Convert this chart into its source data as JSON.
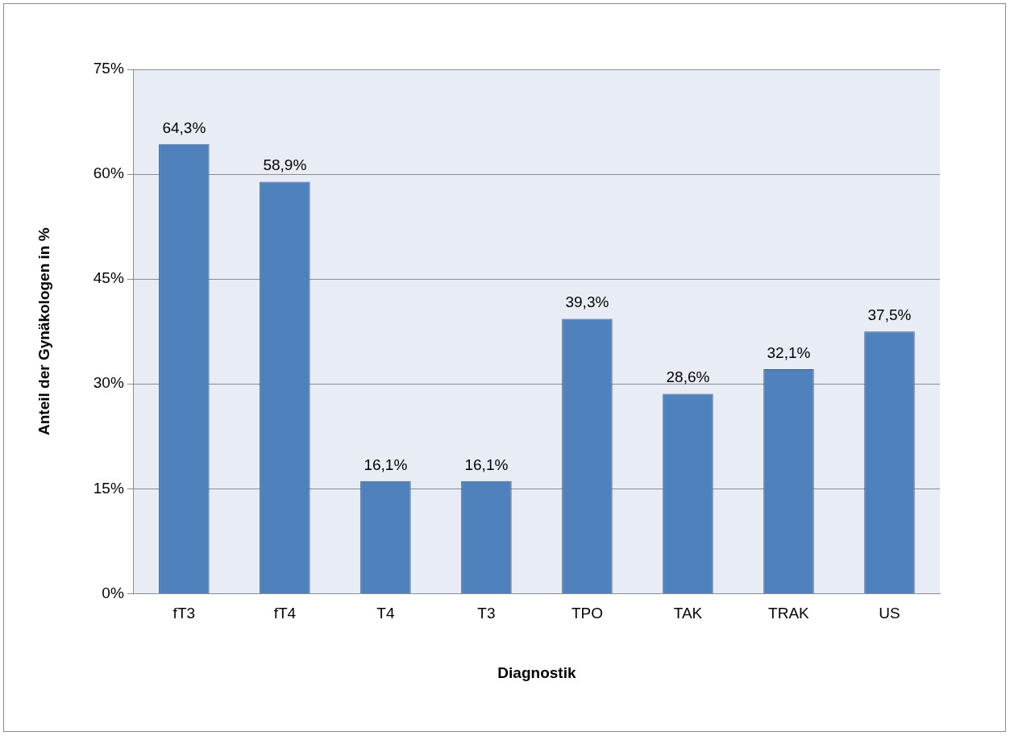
{
  "chart_data": {
    "type": "bar",
    "xlabel": "Diagnostik",
    "ylabel": "Anteil der Gynäkologen in %",
    "categories": [
      "fT3",
      "fT4",
      "T4",
      "T3",
      "TPO",
      "TAK",
      "TRAK",
      "US"
    ],
    "values": [
      64.3,
      58.9,
      16.1,
      16.1,
      39.3,
      28.6,
      32.1,
      37.5
    ],
    "value_labels": [
      "64,3%",
      "58,9%",
      "16,1%",
      "16,1%",
      "39,3%",
      "28,6%",
      "32,1%",
      "37,5%"
    ],
    "color": "#4f81bd",
    "ylim": [
      0,
      75
    ],
    "yticks": [
      {
        "value": 0,
        "label": "0%"
      },
      {
        "value": 15,
        "label": "15%"
      },
      {
        "value": 30,
        "label": "30%"
      },
      {
        "value": 45,
        "label": "45%"
      },
      {
        "value": 60,
        "label": "60%"
      },
      {
        "value": 75,
        "label": "75%"
      }
    ],
    "grid": "y",
    "legend": false
  }
}
